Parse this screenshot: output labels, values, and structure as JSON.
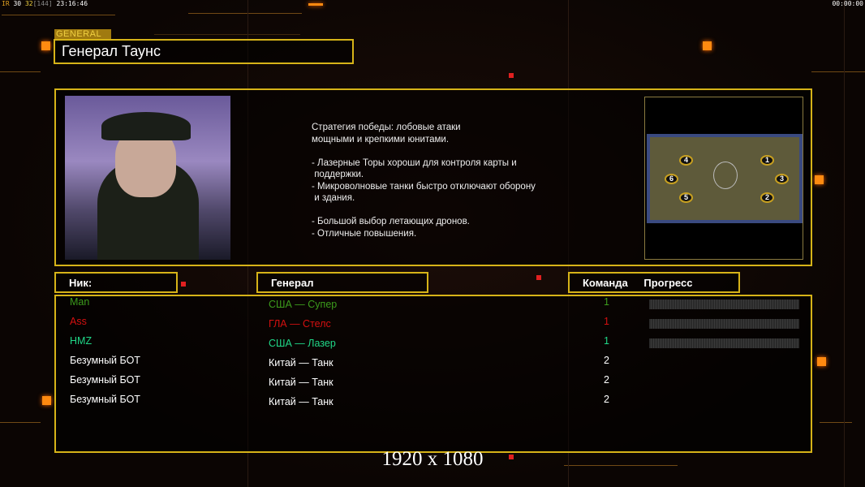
{
  "hud": {
    "left_prefix": "IR",
    "left_a": "30",
    "left_b": "32",
    "left_c": "[144]",
    "left_time": "23:16:46",
    "right_time": "00:00:00"
  },
  "header": {
    "tag": "GENERAL",
    "title": "Генерал Таунс"
  },
  "description": "Стратегия победы: лобовые атаки\nмощными и крепкими юнитами.\n\n- Лазерные Торы хороши для контроля карты и\n поддержки.\n- Микроволновые танки быстро отключают оборону\n и здания.\n\n- Большой выбор летающих дронов.\n- Отличные повышения.",
  "map": {
    "spots": [
      "1",
      "2",
      "3",
      "4",
      "5",
      "6"
    ]
  },
  "columns": {
    "nick": "Ник:",
    "general": "Генерал",
    "team": "Команда",
    "progress": "Прогресс"
  },
  "colors": {
    "accent": "#d6b318",
    "green": "#3c9c1c",
    "red": "#d41010",
    "teal": "#20d888",
    "white": "#ffffff"
  },
  "players": [
    {
      "nick": "Man",
      "general": "США — Супер",
      "team": "1",
      "color": "#3c9c1c",
      "progress": 0
    },
    {
      "nick": "Ass",
      "general": "ГЛА — Стелс",
      "team": "1",
      "color": "#d41010",
      "progress": 0
    },
    {
      "nick": "HMZ",
      "general": "США — Лазер",
      "team": "1",
      "color": "#20d888",
      "progress": 0
    },
    {
      "nick": "Безумный БОТ",
      "general": "Китай — Танк",
      "team": "2",
      "color": "#ffffff"
    },
    {
      "nick": "Безумный БОТ",
      "general": "Китай — Танк",
      "team": "2",
      "color": "#ffffff"
    },
    {
      "nick": "Безумный БОТ",
      "general": "Китай — Танк",
      "team": "2",
      "color": "#ffffff"
    }
  ],
  "resolution": "1920 x 1080"
}
